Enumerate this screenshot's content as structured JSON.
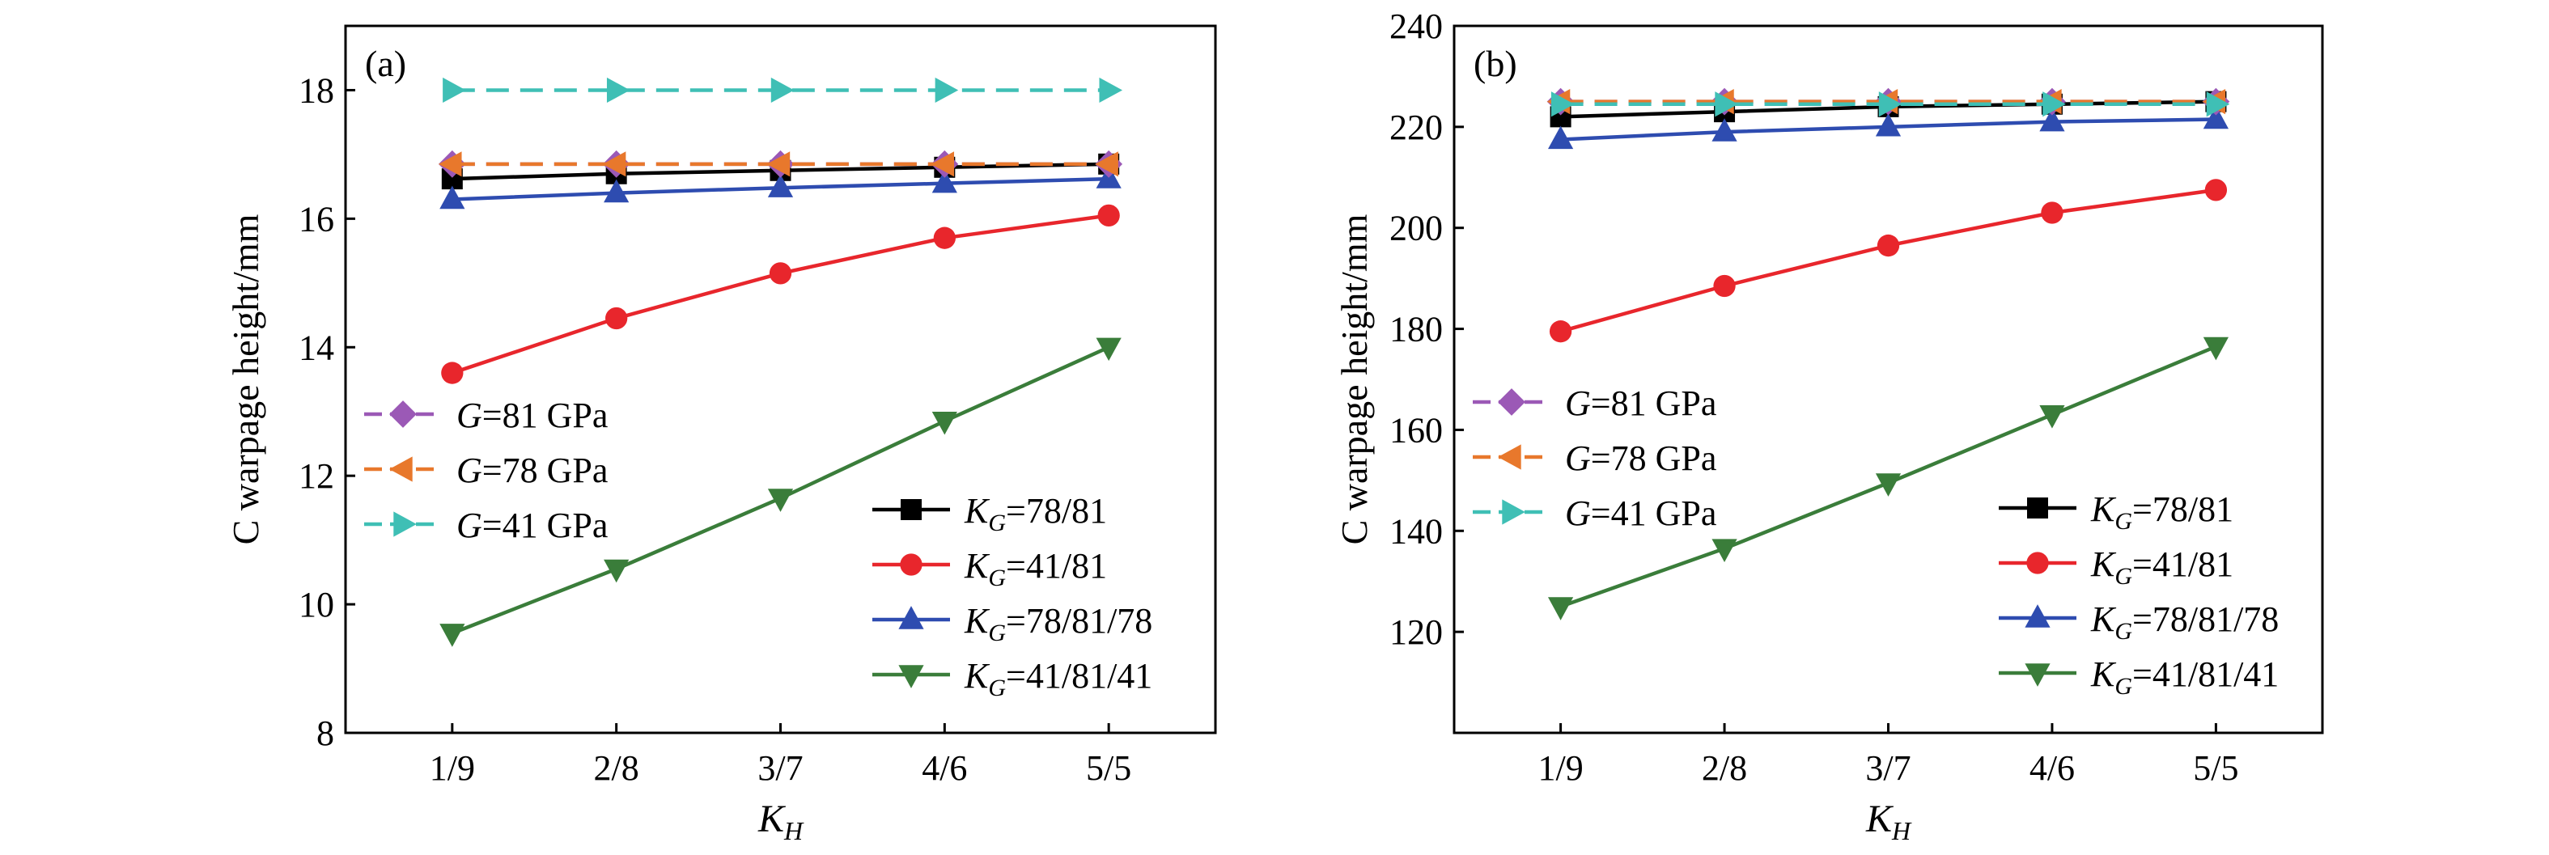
{
  "chart_data": [
    {
      "type": "line",
      "panel_label": "(a)",
      "xlabel_main": "K",
      "xlabel_sub": "H",
      "ylabel": "C warpage height/mm",
      "categories": [
        "1/9",
        "2/8",
        "3/7",
        "4/6",
        "5/5"
      ],
      "ylim": [
        8,
        19
      ],
      "yticks": [
        8,
        10,
        12,
        14,
        16,
        18
      ],
      "series": [
        {
          "prefix": "G",
          "suffix": "=81 GPa",
          "color": "#9b59b6",
          "marker": "diamond",
          "dash": "dashed",
          "values": [
            16.85,
            16.85,
            16.85,
            16.85,
            16.85
          ]
        },
        {
          "prefix": "G",
          "suffix": "=78 GPa",
          "color": "#e8782c",
          "marker": "triangle-left",
          "dash": "dashed",
          "values": [
            16.85,
            16.85,
            16.85,
            16.85,
            16.85
          ]
        },
        {
          "prefix": "G",
          "suffix": "=41 GPa",
          "color": "#3fbfb5",
          "marker": "triangle-right",
          "dash": "dashed",
          "values": [
            18.0,
            18.0,
            18.0,
            18.0,
            18.0
          ]
        },
        {
          "prefix": "K",
          "sub": "G",
          "suffix": "=78/81",
          "color": "#000000",
          "marker": "square",
          "dash": "solid",
          "values": [
            16.62,
            16.7,
            16.75,
            16.8,
            16.85
          ]
        },
        {
          "prefix": "K",
          "sub": "G",
          "suffix": "=41/81",
          "color": "#e8262c",
          "marker": "circle",
          "dash": "solid",
          "values": [
            13.6,
            14.45,
            15.15,
            15.7,
            16.05
          ]
        },
        {
          "prefix": "K",
          "sub": "G",
          "suffix": "=78/81/78",
          "color": "#2e4cb0",
          "marker": "triangle-up",
          "dash": "solid",
          "values": [
            16.3,
            16.4,
            16.48,
            16.55,
            16.62
          ]
        },
        {
          "prefix": "K",
          "sub": "G",
          "suffix": "=41/81/41",
          "color": "#3a7d3a",
          "marker": "triangle-down",
          "dash": "solid",
          "values": [
            9.55,
            10.55,
            11.65,
            12.85,
            14.0
          ]
        }
      ]
    },
    {
      "type": "line",
      "panel_label": "(b)",
      "xlabel_main": "K",
      "xlabel_sub": "H",
      "ylabel": "C warpage height/mm",
      "categories": [
        "1/9",
        "2/8",
        "3/7",
        "4/6",
        "5/5"
      ],
      "ylim": [
        100,
        240
      ],
      "yticks": [
        120,
        140,
        160,
        180,
        200,
        220,
        240
      ],
      "series": [
        {
          "prefix": "G",
          "suffix": "=81 GPa",
          "color": "#9b59b6",
          "marker": "diamond",
          "dash": "dashed",
          "values": [
            225,
            225,
            225,
            225,
            225
          ]
        },
        {
          "prefix": "G",
          "suffix": "=78 GPa",
          "color": "#e8782c",
          "marker": "triangle-left",
          "dash": "dashed",
          "values": [
            225,
            225,
            225,
            225,
            225
          ]
        },
        {
          "prefix": "G",
          "suffix": "=41 GPa",
          "color": "#3fbfb5",
          "marker": "triangle-right",
          "dash": "dashed",
          "values": [
            224.5,
            224.5,
            224.5,
            224.5,
            224.5
          ]
        },
        {
          "prefix": "K",
          "sub": "G",
          "suffix": "=78/81",
          "color": "#000000",
          "marker": "square",
          "dash": "solid",
          "values": [
            222,
            223,
            224,
            224.5,
            225
          ]
        },
        {
          "prefix": "K",
          "sub": "G",
          "suffix": "=41/81",
          "color": "#e8262c",
          "marker": "circle",
          "dash": "solid",
          "values": [
            179.5,
            188.5,
            196.5,
            203,
            207.5
          ]
        },
        {
          "prefix": "K",
          "sub": "G",
          "suffix": "=78/81/78",
          "color": "#2e4cb0",
          "marker": "triangle-up",
          "dash": "solid",
          "values": [
            217.5,
            219,
            220,
            221,
            221.5
          ]
        },
        {
          "prefix": "K",
          "sub": "G",
          "suffix": "=41/81/41",
          "color": "#3a7d3a",
          "marker": "triangle-down",
          "dash": "solid",
          "values": [
            125,
            136.5,
            149.5,
            163,
            176.5
          ]
        }
      ]
    }
  ]
}
